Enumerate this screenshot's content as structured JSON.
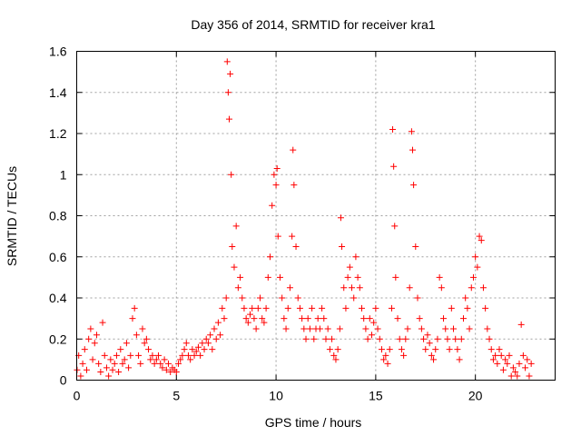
{
  "chart_data": {
    "type": "scatter",
    "title": "Day 356 of 2014, SRMTID for receiver kra1",
    "xlabel": "GPS time / hours",
    "ylabel": "SRMTID / TECUs",
    "xlim": [
      0,
      24
    ],
    "ylim": [
      0,
      1.6
    ],
    "xticks": [
      "0",
      "5",
      "10",
      "15",
      "20"
    ],
    "yticks": [
      "0",
      "0.2",
      "0.4",
      "0.6",
      "0.8",
      "1",
      "1.2",
      "1.4",
      "1.6"
    ],
    "grid": true,
    "marker": "+",
    "marker_color": "#ff0000",
    "series": [
      {
        "name": "kra1",
        "points": [
          [
            0.02,
            0.05
          ],
          [
            0.1,
            0.12
          ],
          [
            0.2,
            0.02
          ],
          [
            0.3,
            0.08
          ],
          [
            0.4,
            0.15
          ],
          [
            0.5,
            0.05
          ],
          [
            0.6,
            0.2
          ],
          [
            0.7,
            0.25
          ],
          [
            0.8,
            0.1
          ],
          [
            0.9,
            0.18
          ],
          [
            1.0,
            0.22
          ],
          [
            1.1,
            0.08
          ],
          [
            1.2,
            0.04
          ],
          [
            1.3,
            0.28
          ],
          [
            1.4,
            0.12
          ],
          [
            1.5,
            0.06
          ],
          [
            1.6,
            0.02
          ],
          [
            1.7,
            0.1
          ],
          [
            1.8,
            0.05
          ],
          [
            1.9,
            0.08
          ],
          [
            2.0,
            0.12
          ],
          [
            2.1,
            0.04
          ],
          [
            2.2,
            0.15
          ],
          [
            2.3,
            0.08
          ],
          [
            2.4,
            0.1
          ],
          [
            2.5,
            0.18
          ],
          [
            2.6,
            0.06
          ],
          [
            2.7,
            0.12
          ],
          [
            2.8,
            0.3
          ],
          [
            2.9,
            0.35
          ],
          [
            3.0,
            0.22
          ],
          [
            3.1,
            0.12
          ],
          [
            3.2,
            0.08
          ],
          [
            3.3,
            0.25
          ],
          [
            3.4,
            0.18
          ],
          [
            3.5,
            0.2
          ],
          [
            3.6,
            0.15
          ],
          [
            3.7,
            0.1
          ],
          [
            3.8,
            0.12
          ],
          [
            3.9,
            0.08
          ],
          [
            4.0,
            0.1
          ],
          [
            4.1,
            0.12
          ],
          [
            4.2,
            0.08
          ],
          [
            4.3,
            0.06
          ],
          [
            4.4,
            0.1
          ],
          [
            4.5,
            0.05
          ],
          [
            4.6,
            0.08
          ],
          [
            4.7,
            0.04
          ],
          [
            4.8,
            0.06
          ],
          [
            4.9,
            0.05
          ],
          [
            5.0,
            0.04
          ],
          [
            5.1,
            0.08
          ],
          [
            5.2,
            0.1
          ],
          [
            5.3,
            0.12
          ],
          [
            5.4,
            0.15
          ],
          [
            5.5,
            0.18
          ],
          [
            5.6,
            0.12
          ],
          [
            5.7,
            0.1
          ],
          [
            5.8,
            0.15
          ],
          [
            5.9,
            0.12
          ],
          [
            6.0,
            0.14
          ],
          [
            6.1,
            0.16
          ],
          [
            6.2,
            0.12
          ],
          [
            6.3,
            0.18
          ],
          [
            6.4,
            0.15
          ],
          [
            6.5,
            0.2
          ],
          [
            6.6,
            0.18
          ],
          [
            6.7,
            0.22
          ],
          [
            6.8,
            0.15
          ],
          [
            6.9,
            0.25
          ],
          [
            7.0,
            0.2
          ],
          [
            7.1,
            0.28
          ],
          [
            7.2,
            0.22
          ],
          [
            7.3,
            0.35
          ],
          [
            7.4,
            0.3
          ],
          [
            7.5,
            0.4
          ],
          [
            7.55,
            1.55
          ],
          [
            7.6,
            1.4
          ],
          [
            7.65,
            1.27
          ],
          [
            7.7,
            1.49
          ],
          [
            7.75,
            1.0
          ],
          [
            7.8,
            0.65
          ],
          [
            7.9,
            0.55
          ],
          [
            8.0,
            0.75
          ],
          [
            8.1,
            0.45
          ],
          [
            8.2,
            0.5
          ],
          [
            8.3,
            0.4
          ],
          [
            8.4,
            0.35
          ],
          [
            8.5,
            0.3
          ],
          [
            8.6,
            0.28
          ],
          [
            8.7,
            0.32
          ],
          [
            8.8,
            0.35
          ],
          [
            8.9,
            0.3
          ],
          [
            9.0,
            0.25
          ],
          [
            9.1,
            0.35
          ],
          [
            9.2,
            0.4
          ],
          [
            9.3,
            0.3
          ],
          [
            9.4,
            0.28
          ],
          [
            9.5,
            0.35
          ],
          [
            9.6,
            0.5
          ],
          [
            9.7,
            0.6
          ],
          [
            9.8,
            0.85
          ],
          [
            9.9,
            1.0
          ],
          [
            10.0,
            0.95
          ],
          [
            10.05,
            1.03
          ],
          [
            10.1,
            0.7
          ],
          [
            10.2,
            0.5
          ],
          [
            10.3,
            0.4
          ],
          [
            10.4,
            0.3
          ],
          [
            10.5,
            0.25
          ],
          [
            10.6,
            0.35
          ],
          [
            10.7,
            0.45
          ],
          [
            10.8,
            0.7
          ],
          [
            10.85,
            1.12
          ],
          [
            10.9,
            0.95
          ],
          [
            11.0,
            0.65
          ],
          [
            11.1,
            0.4
          ],
          [
            11.2,
            0.35
          ],
          [
            11.3,
            0.3
          ],
          [
            11.4,
            0.25
          ],
          [
            11.5,
            0.2
          ],
          [
            11.6,
            0.3
          ],
          [
            11.7,
            0.25
          ],
          [
            11.8,
            0.35
          ],
          [
            11.9,
            0.2
          ],
          [
            12.0,
            0.25
          ],
          [
            12.1,
            0.3
          ],
          [
            12.2,
            0.25
          ],
          [
            12.3,
            0.35
          ],
          [
            12.4,
            0.3
          ],
          [
            12.5,
            0.2
          ],
          [
            12.6,
            0.25
          ],
          [
            12.7,
            0.15
          ],
          [
            12.8,
            0.2
          ],
          [
            12.9,
            0.12
          ],
          [
            13.0,
            0.1
          ],
          [
            13.1,
            0.15
          ],
          [
            13.2,
            0.25
          ],
          [
            13.25,
            0.79
          ],
          [
            13.3,
            0.65
          ],
          [
            13.4,
            0.45
          ],
          [
            13.5,
            0.35
          ],
          [
            13.6,
            0.5
          ],
          [
            13.7,
            0.55
          ],
          [
            13.8,
            0.45
          ],
          [
            13.9,
            0.4
          ],
          [
            14.0,
            0.6
          ],
          [
            14.1,
            0.5
          ],
          [
            14.2,
            0.45
          ],
          [
            14.3,
            0.35
          ],
          [
            14.4,
            0.3
          ],
          [
            14.5,
            0.25
          ],
          [
            14.6,
            0.2
          ],
          [
            14.7,
            0.3
          ],
          [
            14.8,
            0.22
          ],
          [
            14.9,
            0.28
          ],
          [
            15.0,
            0.35
          ],
          [
            15.1,
            0.25
          ],
          [
            15.2,
            0.2
          ],
          [
            15.3,
            0.15
          ],
          [
            15.4,
            0.1
          ],
          [
            15.5,
            0.12
          ],
          [
            15.6,
            0.08
          ],
          [
            15.7,
            0.15
          ],
          [
            15.8,
            0.35
          ],
          [
            15.85,
            1.22
          ],
          [
            15.9,
            1.04
          ],
          [
            15.95,
            0.75
          ],
          [
            16.0,
            0.5
          ],
          [
            16.1,
            0.3
          ],
          [
            16.2,
            0.2
          ],
          [
            16.3,
            0.15
          ],
          [
            16.4,
            0.12
          ],
          [
            16.5,
            0.2
          ],
          [
            16.6,
            0.25
          ],
          [
            16.7,
            0.45
          ],
          [
            16.8,
            1.21
          ],
          [
            16.85,
            1.12
          ],
          [
            16.9,
            0.95
          ],
          [
            17.0,
            0.65
          ],
          [
            17.1,
            0.4
          ],
          [
            17.2,
            0.3
          ],
          [
            17.3,
            0.25
          ],
          [
            17.4,
            0.2
          ],
          [
            17.5,
            0.15
          ],
          [
            17.6,
            0.22
          ],
          [
            17.7,
            0.18
          ],
          [
            17.8,
            0.12
          ],
          [
            17.9,
            0.1
          ],
          [
            18.0,
            0.15
          ],
          [
            18.1,
            0.2
          ],
          [
            18.2,
            0.5
          ],
          [
            18.3,
            0.45
          ],
          [
            18.4,
            0.3
          ],
          [
            18.5,
            0.25
          ],
          [
            18.6,
            0.2
          ],
          [
            18.7,
            0.15
          ],
          [
            18.8,
            0.35
          ],
          [
            18.9,
            0.25
          ],
          [
            19.0,
            0.2
          ],
          [
            19.1,
            0.15
          ],
          [
            19.2,
            0.1
          ],
          [
            19.3,
            0.2
          ],
          [
            19.4,
            0.3
          ],
          [
            19.5,
            0.4
          ],
          [
            19.6,
            0.35
          ],
          [
            19.7,
            0.25
          ],
          [
            19.8,
            0.45
          ],
          [
            19.9,
            0.5
          ],
          [
            20.0,
            0.6
          ],
          [
            20.1,
            0.55
          ],
          [
            20.2,
            0.7
          ],
          [
            20.3,
            0.68
          ],
          [
            20.4,
            0.45
          ],
          [
            20.5,
            0.35
          ],
          [
            20.6,
            0.25
          ],
          [
            20.7,
            0.2
          ],
          [
            20.8,
            0.15
          ],
          [
            20.9,
            0.1
          ],
          [
            21.0,
            0.12
          ],
          [
            21.1,
            0.08
          ],
          [
            21.2,
            0.15
          ],
          [
            21.3,
            0.12
          ],
          [
            21.4,
            0.05
          ],
          [
            21.5,
            0.1
          ],
          [
            21.6,
            0.08
          ],
          [
            21.7,
            0.12
          ],
          [
            21.8,
            0.02
          ],
          [
            21.9,
            0.06
          ],
          [
            22.0,
            0.04
          ],
          [
            22.1,
            0.02
          ],
          [
            22.2,
            0.08
          ],
          [
            22.3,
            0.27
          ],
          [
            22.4,
            0.12
          ],
          [
            22.5,
            0.06
          ],
          [
            22.6,
            0.1
          ],
          [
            22.7,
            0.02
          ],
          [
            22.8,
            0.08
          ]
        ]
      }
    ]
  }
}
